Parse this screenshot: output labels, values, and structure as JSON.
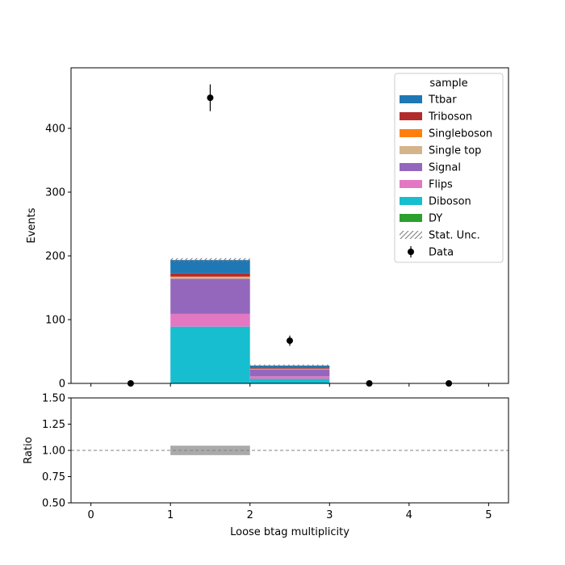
{
  "chart_data": [
    {
      "type": "bar",
      "stacked": true,
      "xlabel": "",
      "ylabel": "Events",
      "xlim": [
        -0.25,
        5.25
      ],
      "ylim": [
        0,
        495
      ],
      "yticks": [
        0,
        100,
        200,
        300,
        400
      ],
      "bin_edges": [
        0,
        1,
        2,
        3,
        4,
        5
      ],
      "legend": {
        "title": "sample",
        "position": "top-right",
        "unc_label": "Stat. Unc.",
        "data_label": "Data"
      },
      "series": [
        {
          "name": "Diboson",
          "color": "#17becf",
          "values": [
            0,
            89,
            7,
            0,
            0
          ]
        },
        {
          "name": "Flips",
          "color": "#e377c2",
          "values": [
            0,
            20,
            4,
            0,
            0
          ]
        },
        {
          "name": "Signal",
          "color": "#9467bd",
          "values": [
            0,
            55,
            11,
            0,
            0
          ]
        },
        {
          "name": "Single top",
          "color": "#d4b48c",
          "values": [
            0,
            3,
            1,
            0,
            0
          ]
        },
        {
          "name": "Singleboson",
          "color": "#ff7f0e",
          "values": [
            0,
            0.5,
            0,
            0,
            0
          ]
        },
        {
          "name": "Triboson",
          "color": "#b22b2b",
          "values": [
            0,
            5,
            1,
            0,
            0
          ]
        },
        {
          "name": "Ttbar",
          "color": "#1f77b4",
          "values": [
            0,
            21,
            4,
            0,
            0
          ]
        },
        {
          "name": "DY",
          "color": "#2ca02c",
          "values": [
            0,
            0,
            0,
            0,
            0
          ]
        }
      ],
      "legend_order": [
        "Ttbar",
        "Triboson",
        "Singleboson",
        "Single top",
        "Signal",
        "Flips",
        "Diboson",
        "DY"
      ],
      "stat_unc": [
        0,
        3,
        1.5,
        0,
        0
      ],
      "data": {
        "x": [
          0.5,
          1.5,
          2.5,
          3.5,
          4.5
        ],
        "y": [
          0,
          448,
          67,
          0,
          0
        ],
        "err": [
          0,
          21,
          8,
          0,
          0
        ]
      }
    },
    {
      "type": "bar",
      "xlabel": "Loose btag multiplicity",
      "ylabel": "Ratio",
      "xlim": [
        -0.25,
        5.25
      ],
      "ylim": [
        0.5,
        1.5
      ],
      "xticks": [
        0,
        1,
        2,
        3,
        4,
        5
      ],
      "yticks": [
        "0.50",
        "0.75",
        "1.00",
        "1.25",
        "1.50"
      ],
      "reference_line": 1.0,
      "unc_band": [
        {
          "x0": 1,
          "x1": 2,
          "low": 0.955,
          "high": 1.045
        }
      ],
      "unc_color": "#aaaaaa"
    }
  ]
}
